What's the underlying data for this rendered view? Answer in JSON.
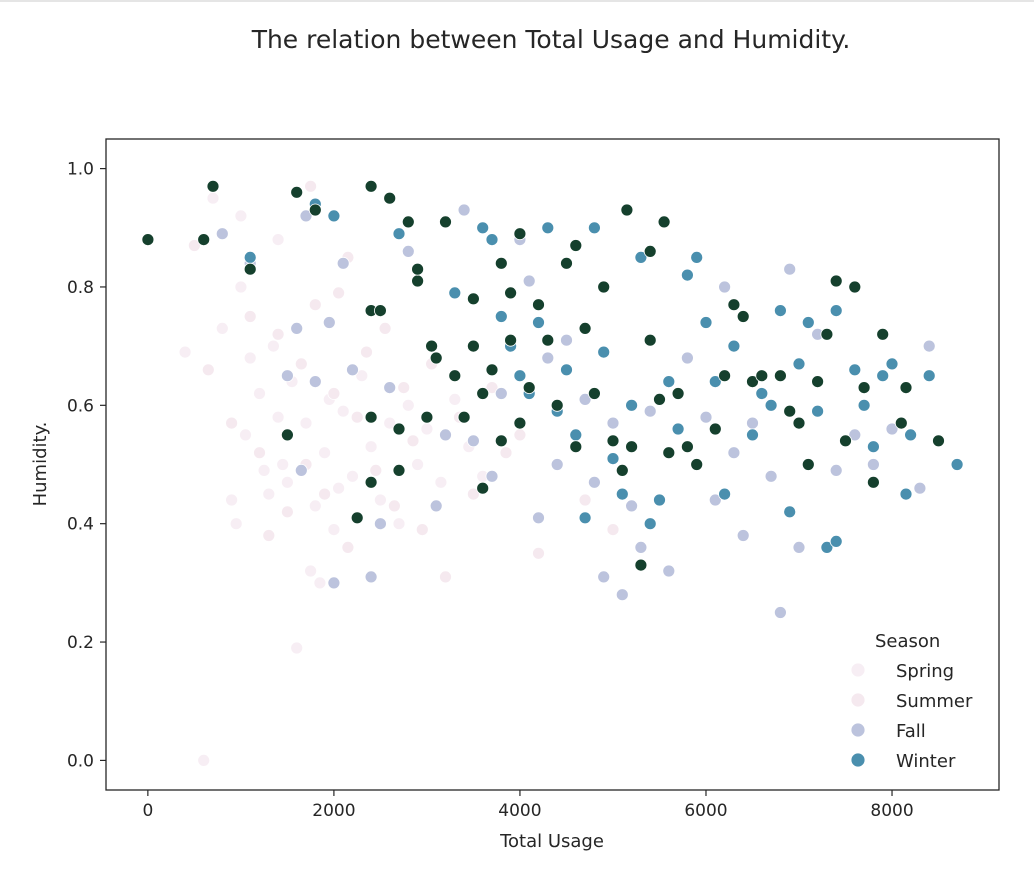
{
  "chart_data": {
    "type": "scatter",
    "title": "The relation between Total Usage and Humidity.",
    "xlabel": "Total Usage",
    "ylabel": "Humidity.",
    "xlim": [
      -450,
      9150
    ],
    "ylim": [
      -0.05,
      1.05
    ],
    "xticks": [
      "0",
      "2000",
      "4000",
      "6000",
      "8000"
    ],
    "yticks": [
      "0.0",
      "0.2",
      "0.4",
      "0.6",
      "0.8",
      "1.0"
    ],
    "legend": {
      "title": "Season",
      "placement": "bottom-right"
    },
    "series": [
      {
        "name": "Spring",
        "color": "#f7eef4",
        "points": [
          [
            400,
            0.69
          ],
          [
            600,
            0.0
          ],
          [
            700,
            0.95
          ],
          [
            800,
            0.73
          ],
          [
            900,
            0.44
          ],
          [
            950,
            0.4
          ],
          [
            1000,
            0.8
          ],
          [
            1050,
            0.55
          ],
          [
            1100,
            0.68
          ],
          [
            1200,
            0.62
          ],
          [
            1250,
            0.49
          ],
          [
            1300,
            0.45
          ],
          [
            1350,
            0.7
          ],
          [
            1400,
            0.58
          ],
          [
            1450,
            0.5
          ],
          [
            1500,
            0.47
          ],
          [
            1550,
            0.64
          ],
          [
            1600,
            0.19
          ],
          [
            1700,
            0.57
          ],
          [
            1750,
            0.32
          ],
          [
            1800,
            0.43
          ],
          [
            1850,
            0.3
          ],
          [
            1900,
            0.52
          ],
          [
            1950,
            0.61
          ],
          [
            2000,
            0.39
          ],
          [
            2050,
            0.46
          ],
          [
            2100,
            0.59
          ],
          [
            2200,
            0.48
          ],
          [
            2300,
            0.65
          ],
          [
            2400,
            0.53
          ],
          [
            2500,
            0.44
          ],
          [
            2600,
            0.57
          ],
          [
            2700,
            0.4
          ],
          [
            2800,
            0.6
          ],
          [
            2900,
            0.5
          ],
          [
            3000,
            0.56
          ],
          [
            3150,
            0.47
          ],
          [
            3300,
            0.61
          ],
          [
            3450,
            0.53
          ],
          [
            3600,
            0.48
          ],
          [
            1000,
            0.92
          ],
          [
            1400,
            0.88
          ]
        ]
      },
      {
        "name": "Summer",
        "color": "#f5e9ef",
        "points": [
          [
            500,
            0.87
          ],
          [
            650,
            0.66
          ],
          [
            900,
            0.57
          ],
          [
            1100,
            0.75
          ],
          [
            1200,
            0.52
          ],
          [
            1300,
            0.38
          ],
          [
            1400,
            0.72
          ],
          [
            1500,
            0.42
          ],
          [
            1650,
            0.67
          ],
          [
            1700,
            0.5
          ],
          [
            1800,
            0.77
          ],
          [
            1900,
            0.45
          ],
          [
            2000,
            0.62
          ],
          [
            2050,
            0.79
          ],
          [
            2150,
            0.36
          ],
          [
            2250,
            0.58
          ],
          [
            2350,
            0.69
          ],
          [
            2450,
            0.49
          ],
          [
            2550,
            0.73
          ],
          [
            2650,
            0.43
          ],
          [
            2750,
            0.63
          ],
          [
            2850,
            0.54
          ],
          [
            2950,
            0.39
          ],
          [
            3050,
            0.67
          ],
          [
            3200,
            0.31
          ],
          [
            3350,
            0.58
          ],
          [
            3500,
            0.45
          ],
          [
            3700,
            0.63
          ],
          [
            3850,
            0.52
          ],
          [
            4000,
            0.55
          ],
          [
            4200,
            0.35
          ],
          [
            4400,
            0.6
          ],
          [
            4700,
            0.44
          ],
          [
            5000,
            0.39
          ],
          [
            1750,
            0.97
          ],
          [
            2150,
            0.85
          ]
        ]
      },
      {
        "name": "Fall",
        "color": "#bcc3dd",
        "points": [
          [
            800,
            0.89
          ],
          [
            1100,
            0.84
          ],
          [
            1500,
            0.65
          ],
          [
            1600,
            0.73
          ],
          [
            1650,
            0.49
          ],
          [
            1700,
            0.92
          ],
          [
            1800,
            0.64
          ],
          [
            1950,
            0.74
          ],
          [
            2000,
            0.3
          ],
          [
            2100,
            0.84
          ],
          [
            2200,
            0.66
          ],
          [
            2400,
            0.31
          ],
          [
            2500,
            0.4
          ],
          [
            2600,
            0.63
          ],
          [
            2800,
            0.86
          ],
          [
            3100,
            0.43
          ],
          [
            3200,
            0.55
          ],
          [
            3400,
            0.93
          ],
          [
            3500,
            0.54
          ],
          [
            3700,
            0.48
          ],
          [
            3800,
            0.62
          ],
          [
            4000,
            0.88
          ],
          [
            4100,
            0.81
          ],
          [
            4200,
            0.41
          ],
          [
            4300,
            0.68
          ],
          [
            4400,
            0.5
          ],
          [
            4500,
            0.71
          ],
          [
            4700,
            0.61
          ],
          [
            4800,
            0.47
          ],
          [
            4900,
            0.31
          ],
          [
            5000,
            0.57
          ],
          [
            5100,
            0.28
          ],
          [
            5200,
            0.43
          ],
          [
            5300,
            0.36
          ],
          [
            5400,
            0.59
          ],
          [
            5600,
            0.32
          ],
          [
            5800,
            0.68
          ],
          [
            6000,
            0.58
          ],
          [
            6100,
            0.44
          ],
          [
            6200,
            0.8
          ],
          [
            6300,
            0.52
          ],
          [
            6400,
            0.38
          ],
          [
            6500,
            0.57
          ],
          [
            6700,
            0.48
          ],
          [
            6800,
            0.25
          ],
          [
            6900,
            0.83
          ],
          [
            7000,
            0.36
          ],
          [
            7200,
            0.72
          ],
          [
            7400,
            0.49
          ],
          [
            7600,
            0.55
          ],
          [
            7800,
            0.5
          ],
          [
            8000,
            0.56
          ],
          [
            8300,
            0.46
          ],
          [
            8400,
            0.7
          ]
        ]
      },
      {
        "name": "Winter",
        "color": "#4a8fae",
        "points": [
          [
            1100,
            0.85
          ],
          [
            1800,
            0.94
          ],
          [
            2000,
            0.92
          ],
          [
            2700,
            0.89
          ],
          [
            3300,
            0.79
          ],
          [
            3400,
            0.58
          ],
          [
            3600,
            0.9
          ],
          [
            3700,
            0.88
          ],
          [
            3800,
            0.75
          ],
          [
            3900,
            0.7
          ],
          [
            4000,
            0.65
          ],
          [
            4100,
            0.62
          ],
          [
            4200,
            0.74
          ],
          [
            4300,
            0.9
          ],
          [
            4400,
            0.59
          ],
          [
            4500,
            0.66
          ],
          [
            4600,
            0.55
          ],
          [
            4700,
            0.41
          ],
          [
            4800,
            0.9
          ],
          [
            4900,
            0.69
          ],
          [
            5000,
            0.51
          ],
          [
            5100,
            0.45
          ],
          [
            5200,
            0.6
          ],
          [
            5300,
            0.85
          ],
          [
            5400,
            0.4
          ],
          [
            5500,
            0.44
          ],
          [
            5600,
            0.64
          ],
          [
            5700,
            0.56
          ],
          [
            5800,
            0.82
          ],
          [
            5900,
            0.85
          ],
          [
            6000,
            0.74
          ],
          [
            6100,
            0.64
          ],
          [
            6200,
            0.45
          ],
          [
            6300,
            0.7
          ],
          [
            6500,
            0.55
          ],
          [
            6600,
            0.62
          ],
          [
            6700,
            0.6
          ],
          [
            6800,
            0.76
          ],
          [
            6900,
            0.42
          ],
          [
            7000,
            0.67
          ],
          [
            7100,
            0.74
          ],
          [
            7200,
            0.59
          ],
          [
            7300,
            0.36
          ],
          [
            7400,
            0.76
          ],
          [
            7500,
            0.54
          ],
          [
            7600,
            0.66
          ],
          [
            7700,
            0.6
          ],
          [
            7800,
            0.53
          ],
          [
            7900,
            0.65
          ],
          [
            8000,
            0.67
          ],
          [
            8150,
            0.45
          ],
          [
            8200,
            0.55
          ],
          [
            8400,
            0.65
          ],
          [
            8700,
            0.5
          ],
          [
            7400,
            0.37
          ]
        ]
      },
      {
        "name": "",
        "color": "#15402d",
        "points": [
          [
            0,
            0.88
          ],
          [
            600,
            0.88
          ],
          [
            700,
            0.97
          ],
          [
            1100,
            0.83
          ],
          [
            1500,
            0.55
          ],
          [
            1600,
            0.96
          ],
          [
            1800,
            0.93
          ],
          [
            2250,
            0.41
          ],
          [
            2400,
            0.97
          ],
          [
            2400,
            0.76
          ],
          [
            2400,
            0.58
          ],
          [
            2400,
            0.47
          ],
          [
            2500,
            0.76
          ],
          [
            2600,
            0.95
          ],
          [
            2700,
            0.56
          ],
          [
            2700,
            0.49
          ],
          [
            2800,
            0.91
          ],
          [
            2900,
            0.81
          ],
          [
            2900,
            0.83
          ],
          [
            3000,
            0.58
          ],
          [
            3050,
            0.7
          ],
          [
            3100,
            0.68
          ],
          [
            3200,
            0.91
          ],
          [
            3300,
            0.65
          ],
          [
            3400,
            0.58
          ],
          [
            3500,
            0.78
          ],
          [
            3500,
            0.7
          ],
          [
            3600,
            0.62
          ],
          [
            3600,
            0.46
          ],
          [
            3700,
            0.66
          ],
          [
            3800,
            0.84
          ],
          [
            3800,
            0.54
          ],
          [
            3900,
            0.79
          ],
          [
            3900,
            0.71
          ],
          [
            4000,
            0.57
          ],
          [
            4000,
            0.89
          ],
          [
            4100,
            0.63
          ],
          [
            4200,
            0.77
          ],
          [
            4300,
            0.71
          ],
          [
            4400,
            0.6
          ],
          [
            4500,
            0.84
          ],
          [
            4600,
            0.87
          ],
          [
            4600,
            0.53
          ],
          [
            4700,
            0.73
          ],
          [
            4800,
            0.62
          ],
          [
            4900,
            0.8
          ],
          [
            5000,
            0.54
          ],
          [
            5100,
            0.49
          ],
          [
            5150,
            0.93
          ],
          [
            5200,
            0.53
          ],
          [
            5300,
            0.33
          ],
          [
            5400,
            0.86
          ],
          [
            5400,
            0.71
          ],
          [
            5500,
            0.61
          ],
          [
            5550,
            0.91
          ],
          [
            5600,
            0.52
          ],
          [
            5700,
            0.62
          ],
          [
            5800,
            0.53
          ],
          [
            5900,
            0.5
          ],
          [
            6100,
            0.56
          ],
          [
            6200,
            0.65
          ],
          [
            6300,
            0.77
          ],
          [
            6400,
            0.75
          ],
          [
            6500,
            0.64
          ],
          [
            6600,
            0.65
          ],
          [
            6800,
            0.65
          ],
          [
            6900,
            0.59
          ],
          [
            7000,
            0.57
          ],
          [
            7100,
            0.5
          ],
          [
            7200,
            0.64
          ],
          [
            7300,
            0.72
          ],
          [
            7400,
            0.81
          ],
          [
            7500,
            0.54
          ],
          [
            7600,
            0.8
          ],
          [
            7700,
            0.63
          ],
          [
            7800,
            0.47
          ],
          [
            7900,
            0.72
          ],
          [
            8100,
            0.57
          ],
          [
            8150,
            0.63
          ],
          [
            8500,
            0.54
          ]
        ]
      }
    ]
  }
}
